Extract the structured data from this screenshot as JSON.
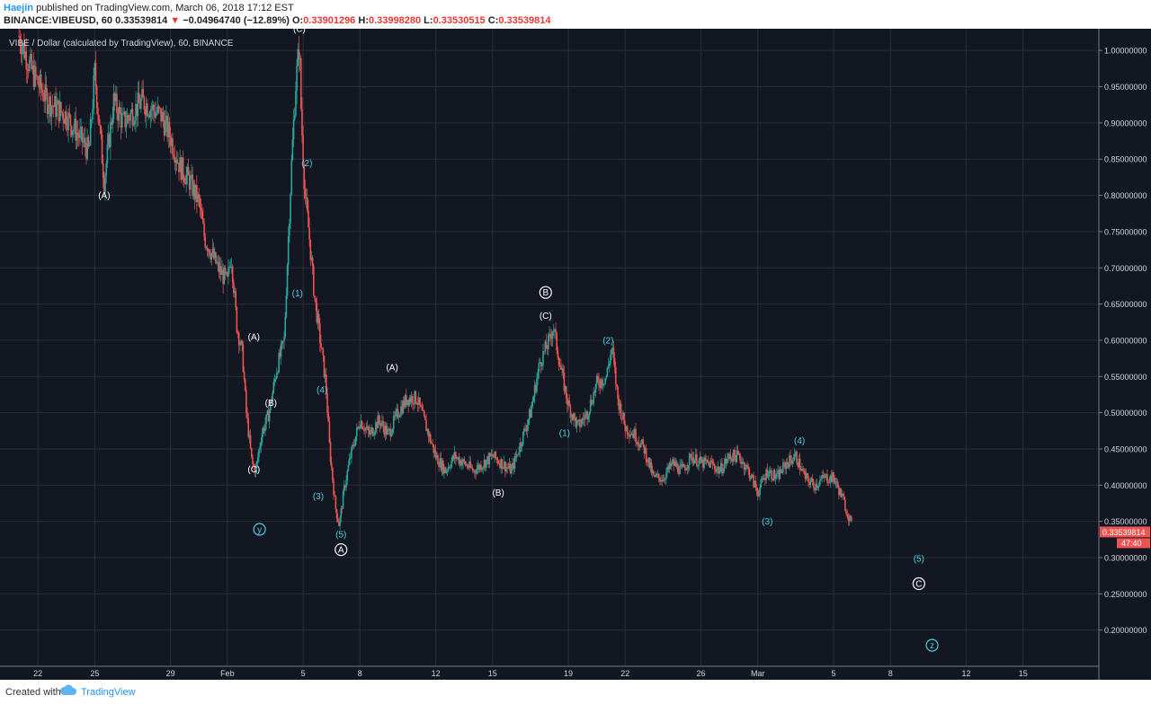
{
  "header": {
    "author": "Haejin",
    "published": "published on TradingView.com, March 06, 2018 17:12 EST",
    "symbol": "BINANCE:VIBEUSD, 60",
    "last": "0.33539814",
    "change": "−0.04964740 (−12.89%)",
    "o_label": "O:",
    "o": "0.33901296",
    "h_label": "H:",
    "h": "0.33998280",
    "l_label": "L:",
    "l": "0.33530515",
    "c_label": "C:",
    "c": "0.33539814"
  },
  "footer": {
    "created_with": "Created with",
    "brand": "TradingView"
  },
  "colors": {
    "bg": "#131722",
    "grid": "#2a2e39",
    "up": "#26a69a",
    "down": "#ef5350",
    "text": "#d1d4dc",
    "wave_cyan": "#4dd0e1",
    "price_tag": "#ef5350"
  },
  "chart_data": {
    "type": "candlestick",
    "title": "VIBE / Dollar (calculated by TradingView), 60, BINANCE",
    "ylim": [
      0.15,
      1.03
    ],
    "y_ticks": [
      "1.00000000",
      "0.95000000",
      "0.90000000",
      "0.85000000",
      "0.80000000",
      "0.75000000",
      "0.70000000",
      "0.65000000",
      "0.60000000",
      "0.55000000",
      "0.50000000",
      "0.45000000",
      "0.40000000",
      "0.35000000",
      "0.30000000",
      "0.25000000",
      "0.20000000"
    ],
    "x_ticks": [
      {
        "label": "22",
        "day": -10
      },
      {
        "label": "25",
        "day": -7
      },
      {
        "label": "29",
        "day": -3
      },
      {
        "label": "Feb",
        "day": 0
      },
      {
        "label": "5",
        "day": 4
      },
      {
        "label": "8",
        "day": 7
      },
      {
        "label": "12",
        "day": 11
      },
      {
        "label": "15",
        "day": 14
      },
      {
        "label": "19",
        "day": 18
      },
      {
        "label": "22",
        "day": 21
      },
      {
        "label": "26",
        "day": 25
      },
      {
        "label": "Mar",
        "day": 28
      },
      {
        "label": "5",
        "day": 32
      },
      {
        "label": "8",
        "day": 35
      },
      {
        "label": "12",
        "day": 39
      },
      {
        "label": "15",
        "day": 42
      }
    ],
    "price_path": [
      [
        -11,
        1.02
      ],
      [
        -10.3,
        0.97
      ],
      [
        -9.5,
        0.93
      ],
      [
        -8.5,
        0.91
      ],
      [
        -7.3,
        0.86
      ],
      [
        -7,
        0.97
      ],
      [
        -6.5,
        0.82
      ],
      [
        -6,
        0.93
      ],
      [
        -5.5,
        0.9
      ],
      [
        -4.5,
        0.93
      ],
      [
        -3.5,
        0.91
      ],
      [
        -3,
        0.88
      ],
      [
        -2.5,
        0.84
      ],
      [
        -2,
        0.82
      ],
      [
        -1.5,
        0.79
      ],
      [
        -1.2,
        0.74
      ],
      [
        -1,
        0.73
      ],
      [
        -0.5,
        0.7
      ],
      [
        0,
        0.68
      ],
      [
        0.2,
        0.72
      ],
      [
        0.5,
        0.62
      ],
      [
        0.8,
        0.58
      ],
      [
        1,
        0.5
      ],
      [
        1.3,
        0.43
      ],
      [
        1.5,
        0.42
      ],
      [
        1.8,
        0.47
      ],
      [
        2.2,
        0.5
      ],
      [
        2.6,
        0.56
      ],
      [
        3,
        0.6
      ],
      [
        3.2,
        0.73
      ],
      [
        3.4,
        0.85
      ],
      [
        3.6,
        0.95
      ],
      [
        3.8,
        1.01
      ],
      [
        3.9,
        0.91
      ],
      [
        4.1,
        0.8
      ],
      [
        4.3,
        0.75
      ],
      [
        4.6,
        0.66
      ],
      [
        4.9,
        0.6
      ],
      [
        5.2,
        0.54
      ],
      [
        5.4,
        0.45
      ],
      [
        5.7,
        0.37
      ],
      [
        5.9,
        0.345
      ],
      [
        6.2,
        0.4
      ],
      [
        6.5,
        0.44
      ],
      [
        7,
        0.49
      ],
      [
        7.5,
        0.47
      ],
      [
        8,
        0.49
      ],
      [
        8.5,
        0.47
      ],
      [
        9,
        0.5
      ],
      [
        9.5,
        0.52
      ],
      [
        10,
        0.52
      ],
      [
        10.5,
        0.48
      ],
      [
        11,
        0.44
      ],
      [
        11.5,
        0.42
      ],
      [
        12,
        0.44
      ],
      [
        12.5,
        0.43
      ],
      [
        13,
        0.42
      ],
      [
        13.5,
        0.43
      ],
      [
        14,
        0.44
      ],
      [
        14.5,
        0.43
      ],
      [
        15,
        0.42
      ],
      [
        15.5,
        0.46
      ],
      [
        16,
        0.5
      ],
      [
        16.5,
        0.57
      ],
      [
        17,
        0.6
      ],
      [
        17.2,
        0.62
      ],
      [
        17.6,
        0.56
      ],
      [
        18,
        0.51
      ],
      [
        18.5,
        0.48
      ],
      [
        19,
        0.5
      ],
      [
        19.5,
        0.54
      ],
      [
        20,
        0.55
      ],
      [
        20.3,
        0.59
      ],
      [
        20.6,
        0.52
      ],
      [
        21,
        0.48
      ],
      [
        21.5,
        0.47
      ],
      [
        22,
        0.45
      ],
      [
        22.5,
        0.41
      ],
      [
        23,
        0.41
      ],
      [
        23.5,
        0.43
      ],
      [
        24,
        0.42
      ],
      [
        24.5,
        0.44
      ],
      [
        25,
        0.43
      ],
      [
        25.5,
        0.43
      ],
      [
        26,
        0.42
      ],
      [
        26.5,
        0.44
      ],
      [
        27,
        0.44
      ],
      [
        27.5,
        0.42
      ],
      [
        28,
        0.39
      ],
      [
        28.5,
        0.42
      ],
      [
        29,
        0.41
      ],
      [
        29.5,
        0.43
      ],
      [
        30,
        0.44
      ],
      [
        30.5,
        0.41
      ],
      [
        31,
        0.4
      ],
      [
        31.5,
        0.41
      ],
      [
        32,
        0.41
      ],
      [
        32.5,
        0.38
      ],
      [
        33,
        0.34
      ]
    ],
    "last_price": "0.33539814",
    "countdown": "47:40",
    "wave_labels": [
      {
        "text": "(A)",
        "day": -6.5,
        "price": 0.8,
        "color": "white"
      },
      {
        "text": "(C)",
        "day": 3.8,
        "price": 1.03,
        "color": "white"
      },
      {
        "text": "(2)",
        "day": 4.2,
        "price": 0.845,
        "color": "cyan"
      },
      {
        "text": "(1)",
        "day": 3.7,
        "price": 0.665,
        "color": "cyan"
      },
      {
        "text": "(A)",
        "day": 1.4,
        "price": 0.605,
        "color": "white"
      },
      {
        "text": "(B)",
        "day": 2.3,
        "price": 0.514,
        "color": "white"
      },
      {
        "text": "(4)",
        "day": 5.0,
        "price": 0.532,
        "color": "cyan"
      },
      {
        "text": "(C)",
        "day": 1.4,
        "price": 0.422,
        "color": "white"
      },
      {
        "text": "(3)",
        "day": 4.8,
        "price": 0.385,
        "color": "cyan"
      },
      {
        "text": "(5)",
        "day": 6.0,
        "price": 0.332,
        "color": "cyan"
      },
      {
        "text": "(A)",
        "day": 8.7,
        "price": 0.563,
        "color": "white"
      },
      {
        "text": "(B)",
        "day": 14.3,
        "price": 0.39,
        "color": "white"
      },
      {
        "text": "(C)",
        "day": 16.8,
        "price": 0.634,
        "color": "white"
      },
      {
        "text": "(2)",
        "day": 20.1,
        "price": 0.6,
        "color": "cyan"
      },
      {
        "text": "(1)",
        "day": 17.8,
        "price": 0.472,
        "color": "cyan"
      },
      {
        "text": "(3)",
        "day": 28.5,
        "price": 0.35,
        "color": "cyan"
      },
      {
        "text": "(4)",
        "day": 30.2,
        "price": 0.462,
        "color": "cyan"
      },
      {
        "text": "(5)",
        "day": 36.5,
        "price": 0.299,
        "color": "cyan"
      }
    ],
    "circle_labels": [
      {
        "text": "y",
        "day": 1.7,
        "price": 0.339,
        "color": "cyan"
      },
      {
        "text": "A",
        "day": 6.0,
        "price": 0.311,
        "color": "white"
      },
      {
        "text": "B",
        "day": 16.8,
        "price": 0.666,
        "color": "white"
      },
      {
        "text": "C",
        "day": 36.5,
        "price": 0.264,
        "color": "white"
      },
      {
        "text": "z",
        "day": 37.2,
        "price": 0.179,
        "color": "cyan"
      }
    ]
  }
}
